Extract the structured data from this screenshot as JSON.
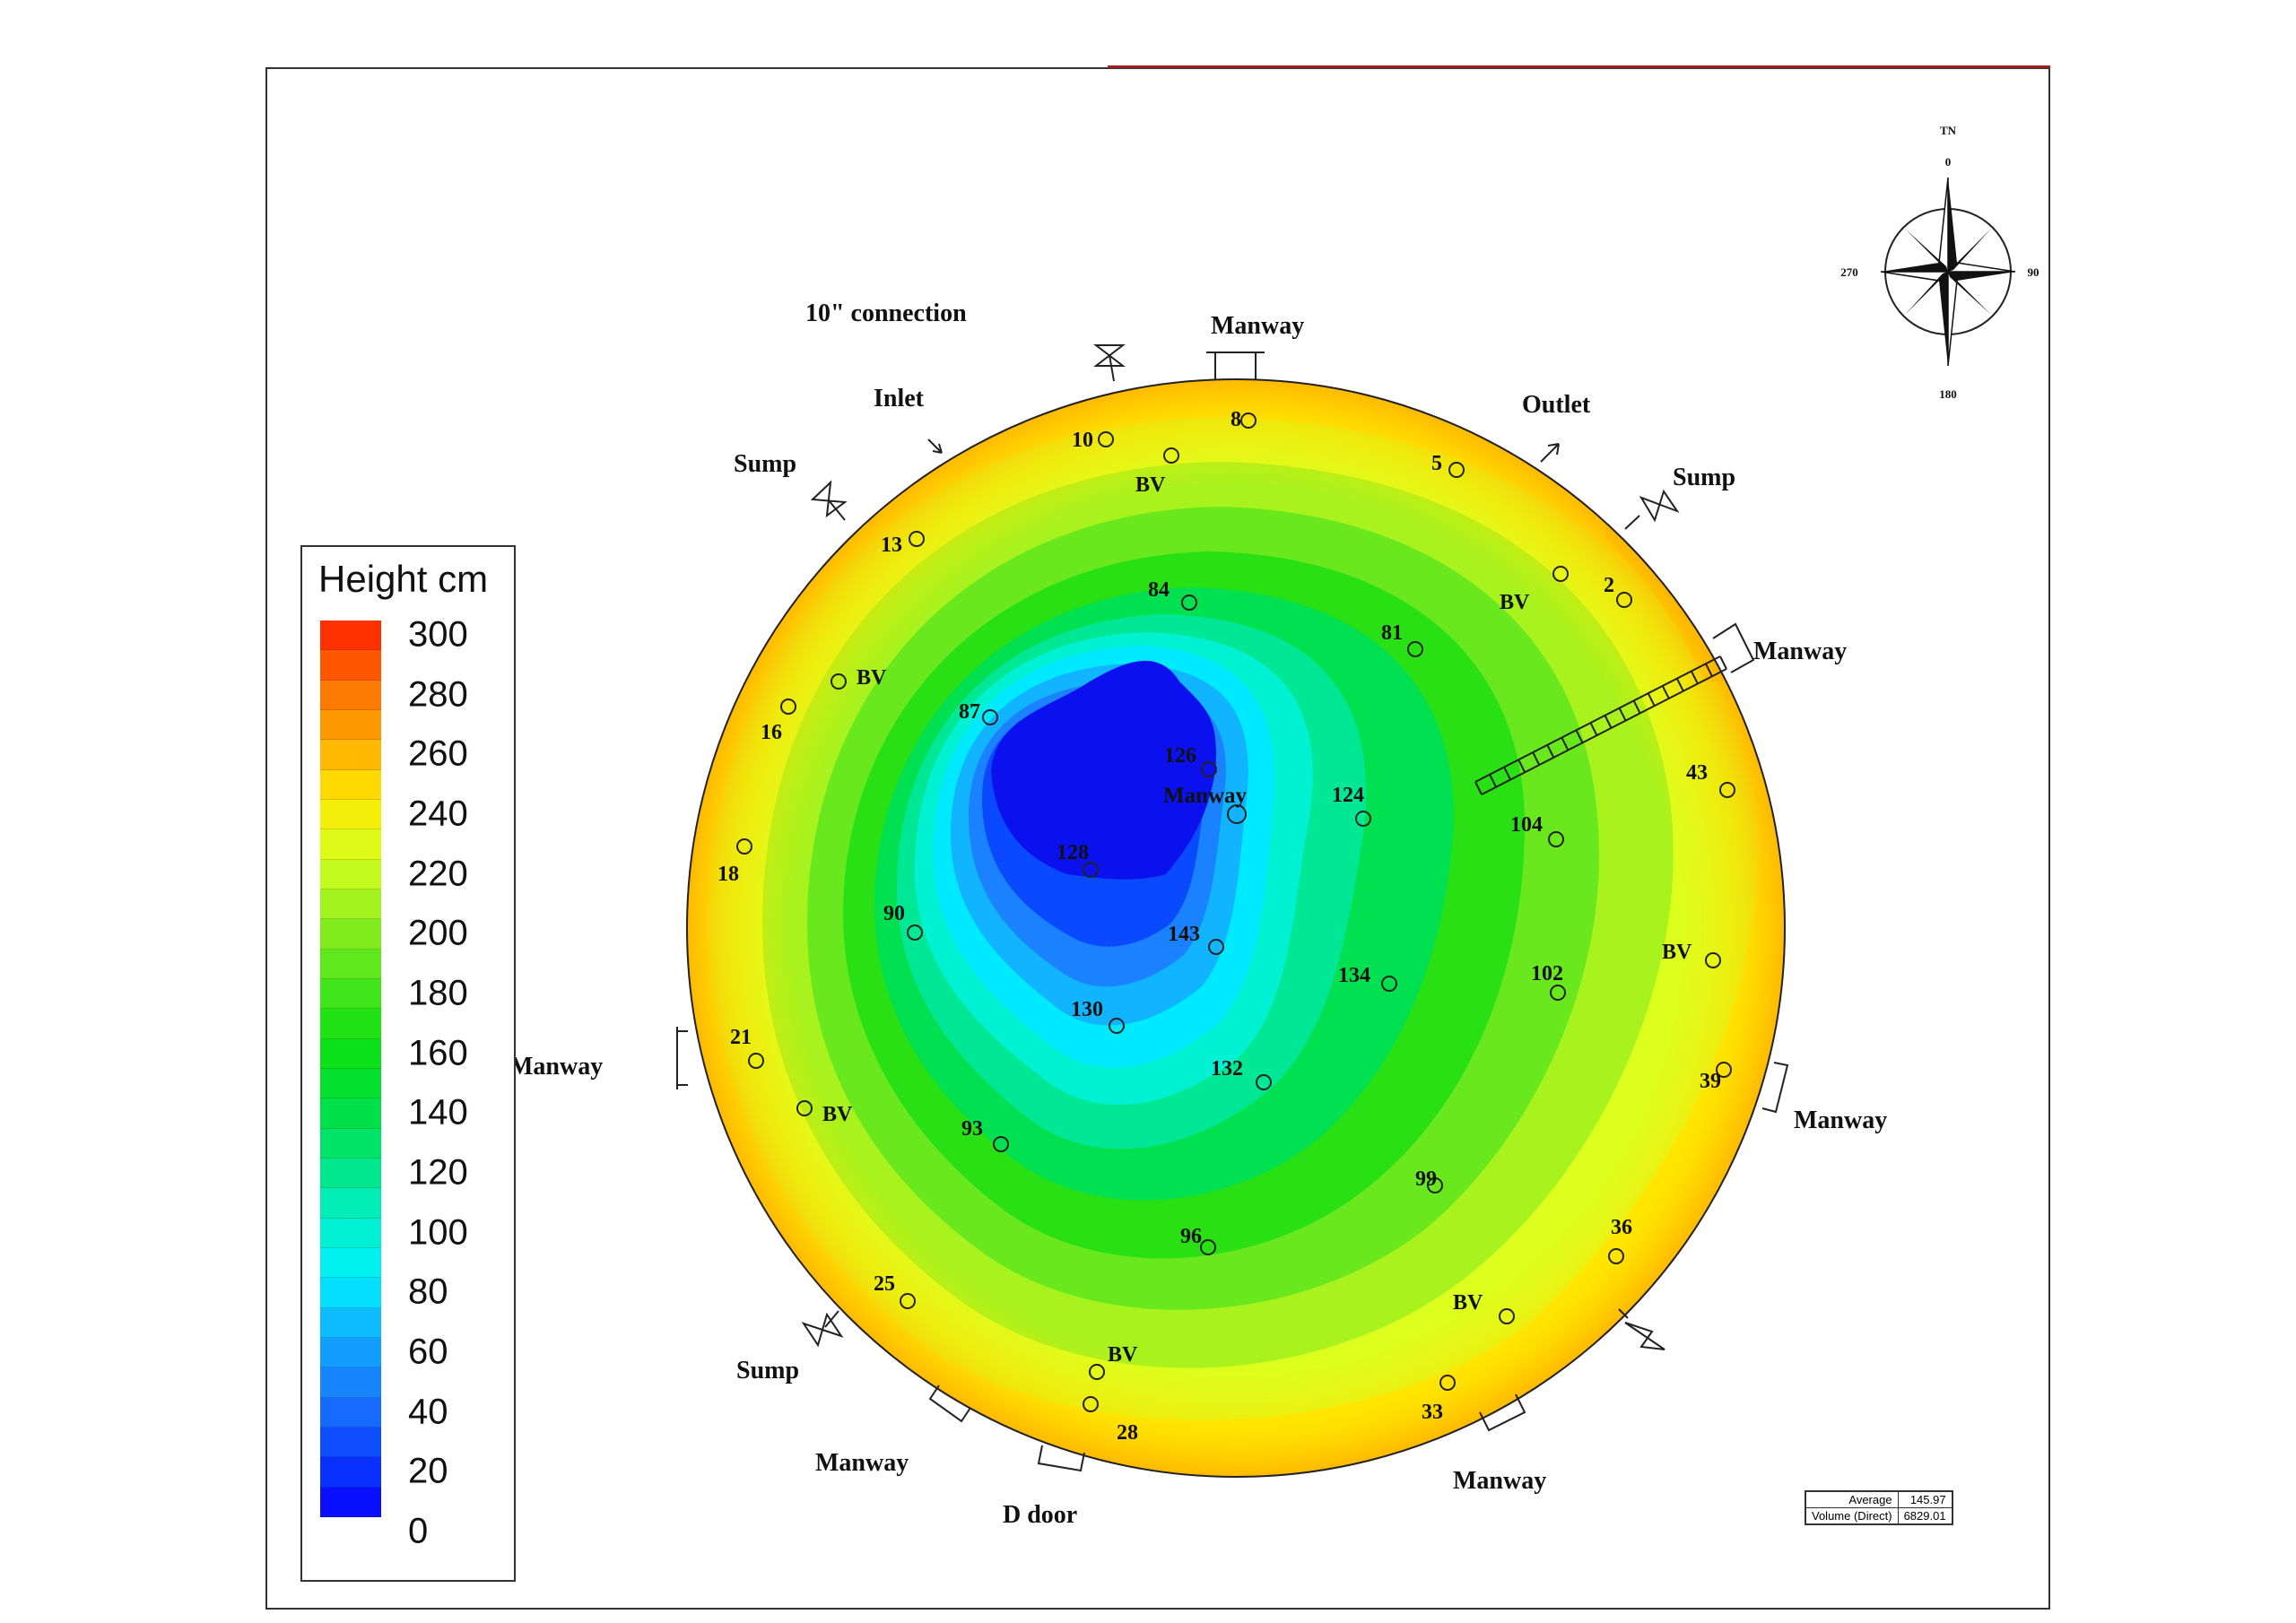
{
  "chart_data": {
    "type": "heatmap",
    "legend": {
      "title": "Height cm",
      "ticks": [
        300,
        280,
        260,
        240,
        220,
        200,
        180,
        160,
        140,
        120,
        100,
        80,
        60,
        40,
        20,
        0
      ],
      "range": [
        0,
        300
      ],
      "step": 10,
      "placement": "left"
    },
    "colors": {
      "0": "#0a00ff",
      "20": "#0a40ff",
      "40": "#1a78ff",
      "60": "#10aaff",
      "80": "#00f0ff",
      "100": "#00f0c8",
      "120": "#00e47a",
      "140": "#00e038",
      "160": "#10e010",
      "180": "#50e61e",
      "200": "#90ee1e",
      "220": "#d4ff1e",
      "240": "#ffea00",
      "260": "#ffa800",
      "280": "#ff6a00",
      "300": "#ff1e00"
    },
    "points": [
      {
        "label": "8",
        "value": 8
      },
      {
        "label": "10",
        "value": 10
      },
      {
        "label": "5",
        "value": 5
      },
      {
        "label": "2",
        "value": 2
      },
      {
        "label": "13",
        "value": 13
      },
      {
        "label": "84",
        "value": 84
      },
      {
        "label": "81",
        "value": 81
      },
      {
        "label": "16",
        "value": 16
      },
      {
        "label": "87",
        "value": 87
      },
      {
        "label": "126",
        "value": 126
      },
      {
        "label": "124",
        "value": 124
      },
      {
        "label": "104",
        "value": 104
      },
      {
        "label": "43",
        "value": 43
      },
      {
        "label": "18",
        "value": 18
      },
      {
        "label": "128",
        "value": 128
      },
      {
        "label": "90",
        "value": 90
      },
      {
        "label": "143",
        "value": 143
      },
      {
        "label": "134",
        "value": 134
      },
      {
        "label": "102",
        "value": 102
      },
      {
        "label": "130",
        "value": 130
      },
      {
        "label": "21",
        "value": 21
      },
      {
        "label": "132",
        "value": 132
      },
      {
        "label": "39",
        "value": 39
      },
      {
        "label": "93",
        "value": 93
      },
      {
        "label": "99",
        "value": 99
      },
      {
        "label": "36",
        "value": 36
      },
      {
        "label": "96",
        "value": 96
      },
      {
        "label": "25",
        "value": 25
      },
      {
        "label": "33",
        "value": 33
      },
      {
        "label": "28",
        "value": 28
      }
    ],
    "bv_labels": [
      "BV",
      "BV",
      "BV",
      "BV",
      "BV",
      "BV",
      "BV"
    ],
    "annotations": {
      "connection": "10\" connection",
      "inlet": "Inlet",
      "outlet": "Outlet",
      "sump_nw": "Sump",
      "sump_ne": "Sump",
      "sump_sw": "Sump",
      "manway_top": "Manway",
      "manway_ne": "Manway",
      "manway_left": "Manway",
      "manway_right": "Manway",
      "manway_center": "Manway",
      "manway_sw": "Manway",
      "manway_se": "Manway",
      "d_door": "D door"
    },
    "compass": {
      "tn": "TN",
      "n": "0",
      "e": "90",
      "s": "180",
      "w": "270"
    },
    "stats": {
      "average_label": "Average",
      "average_value": "145.97",
      "volume_label": "Volume (Direct)",
      "volume_value": "6829.01"
    }
  }
}
